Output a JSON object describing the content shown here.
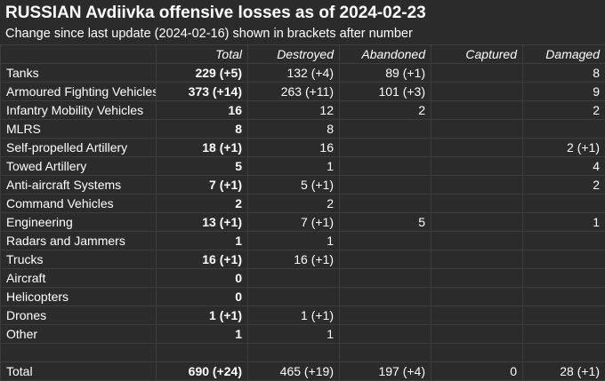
{
  "title": "RUSSIAN Avdiivka offensive losses as of 2024-02-23",
  "subtitle": "Change since last update (2024-02-16) shown in brackets after number",
  "columns": [
    "",
    "Total",
    "Destroyed",
    "Abandoned",
    "Captured",
    "Damaged"
  ],
  "rows": [
    [
      "Tanks",
      "229 (+5)",
      "132 (+4)",
      "89 (+1)",
      "",
      "8"
    ],
    [
      "Armoured Fighting Vehicles",
      "373 (+14)",
      "263 (+11)",
      "101 (+3)",
      "",
      "9"
    ],
    [
      "Infantry Mobility Vehicles",
      "16",
      "12",
      "2",
      "",
      "2"
    ],
    [
      "MLRS",
      "8",
      "8",
      "",
      "",
      ""
    ],
    [
      "Self-propelled Artillery",
      "18 (+1)",
      "16",
      "",
      "",
      "2 (+1)"
    ],
    [
      "Towed Artillery",
      "5",
      "1",
      "",
      "",
      "4"
    ],
    [
      "Anti-aircraft Systems",
      "7 (+1)",
      "5 (+1)",
      "",
      "",
      "2"
    ],
    [
      "Command Vehicles",
      "2",
      "2",
      "",
      "",
      ""
    ],
    [
      "Engineering",
      "13 (+1)",
      "7 (+1)",
      "5",
      "",
      "1"
    ],
    [
      "Radars and Jammers",
      "1",
      "1",
      "",
      "",
      ""
    ],
    [
      "Trucks",
      "16 (+1)",
      "16 (+1)",
      "",
      "",
      ""
    ],
    [
      "Aircraft",
      "0",
      "",
      "",
      "",
      ""
    ],
    [
      "Helicopters",
      "0",
      "",
      "",
      "",
      ""
    ],
    [
      "Drones",
      "1 (+1)",
      "1 (+1)",
      "",
      "",
      ""
    ],
    [
      "Other",
      "1",
      "1",
      "",
      "",
      ""
    ]
  ],
  "total_row": [
    "Total",
    "690 (+24)",
    "465 (+19)",
    "197 (+4)",
    "0",
    "28 (+1)"
  ]
}
